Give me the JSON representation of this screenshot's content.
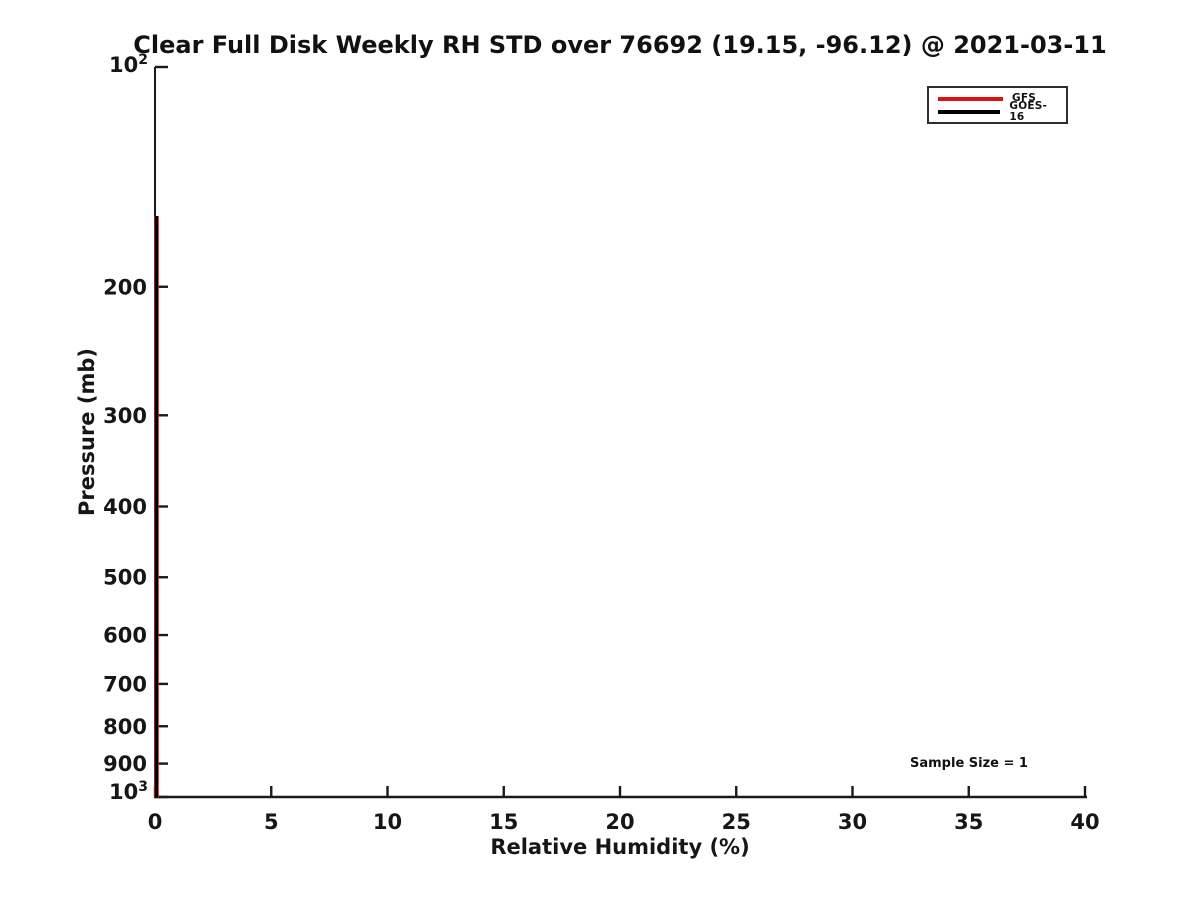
{
  "colors": {
    "background": "#ffffff",
    "axis": "#1a1a1a",
    "gfs_red": "#dd1111",
    "goes16_black": "#000000"
  },
  "chart_data": {
    "type": "line",
    "title": "Clear Full Disk Weekly RH STD over 76692 (19.15, -96.12) @ 2021-03-11",
    "xlabel": "Relative Humidity (%)",
    "ylabel": "Pressure (mb)",
    "x_scale": "linear",
    "y_scale": "log",
    "y_inverted": true,
    "xlim": [
      0,
      40
    ],
    "ylim": [
      100,
      1000
    ],
    "x_ticks": [
      0,
      5,
      10,
      15,
      20,
      25,
      30,
      35,
      40
    ],
    "y_ticks": [
      200,
      300,
      400,
      500,
      600,
      700,
      800,
      900
    ],
    "y_top_label": {
      "mantissa": "10",
      "exponent": "2"
    },
    "y_bottom_label": {
      "mantissa": "10",
      "exponent": "3"
    },
    "grid": false,
    "legend_position": "top-right",
    "series": [
      {
        "name": "GFS",
        "color": "#dd1111",
        "points": [
          {
            "x": 0,
            "y": 160
          },
          {
            "x": 0,
            "y": 1000
          }
        ]
      },
      {
        "name": "GOES-16",
        "color": "#000000",
        "points": [
          {
            "x": 0,
            "y": 160
          },
          {
            "x": 0,
            "y": 1000
          }
        ]
      }
    ],
    "annotation": "Sample Size = 1"
  }
}
